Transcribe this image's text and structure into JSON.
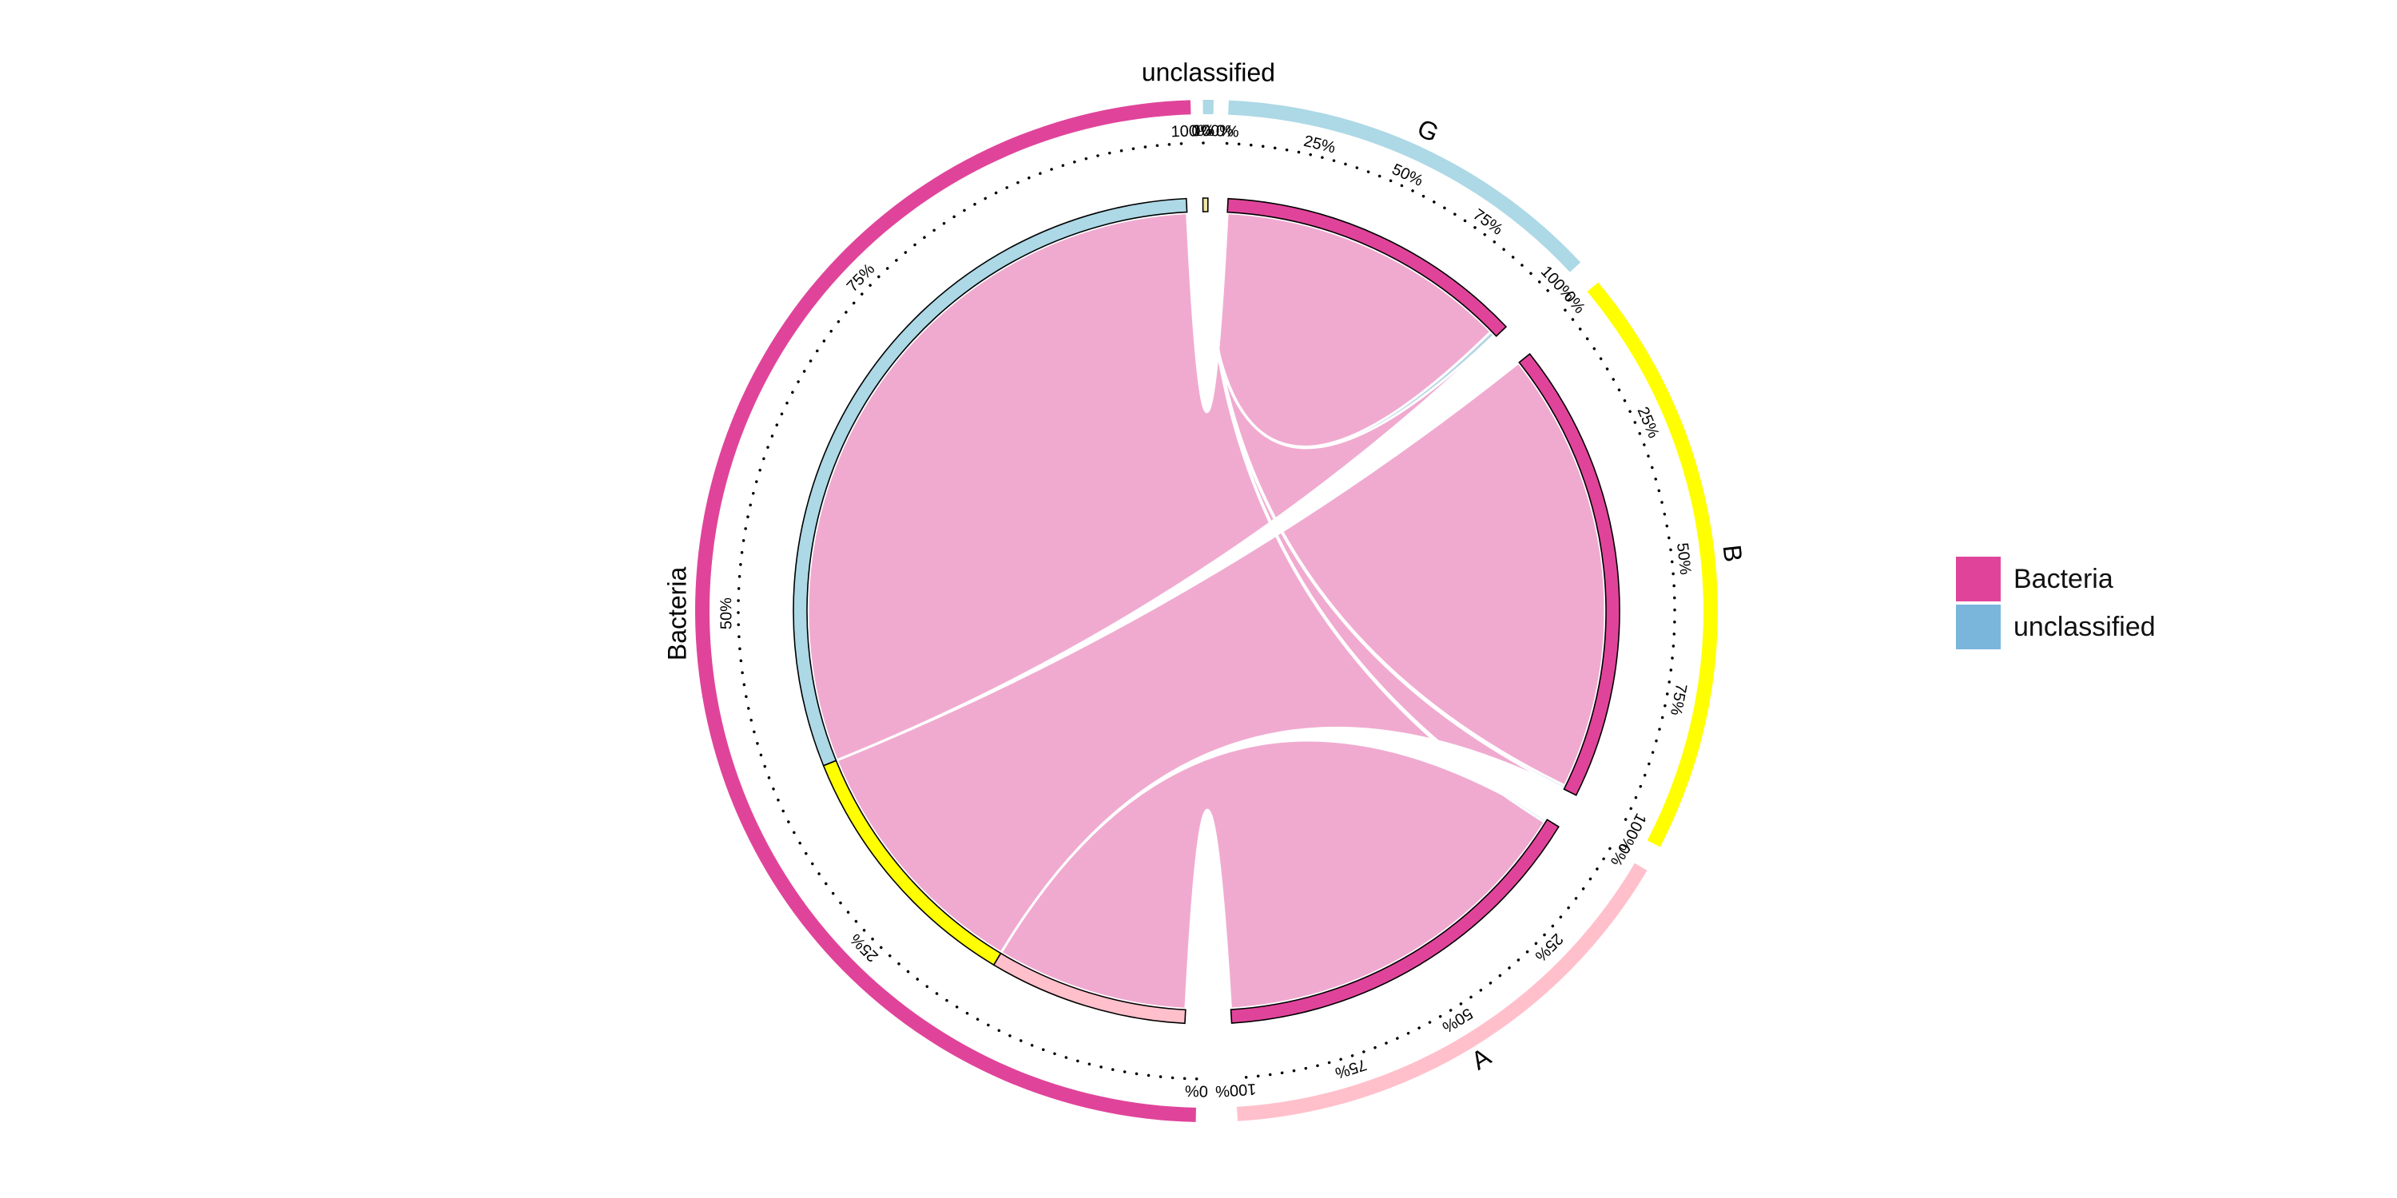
{
  "chart_data": {
    "type": "chord",
    "sectors": [
      {
        "name": "Bacteria",
        "color": "#E0449A",
        "percent_ticks": [
          "0%",
          "25%",
          "50%",
          "75%",
          "100%"
        ]
      },
      {
        "name": "unclassified",
        "color": "#ADD8E6",
        "percent_ticks": [
          "0%",
          "100%"
        ]
      },
      {
        "name": "G",
        "color": "#ADD8E6",
        "percent_ticks": [
          "0%",
          "25%",
          "50%",
          "75%",
          "100%"
        ]
      },
      {
        "name": "B",
        "color": "#FFFF00",
        "percent_ticks": [
          "0%",
          "25%",
          "50%",
          "75%",
          "100%"
        ]
      },
      {
        "name": "A",
        "color": "#FFC0CB",
        "percent_ticks": [
          "0%",
          "25%",
          "50%",
          "75%",
          "100%"
        ]
      }
    ],
    "links": [
      {
        "from": "Bacteria",
        "to": "G",
        "share_of_from": 0.315
      },
      {
        "from": "Bacteria",
        "to": "B",
        "share_of_from": 0.356
      },
      {
        "from": "Bacteria",
        "to": "A",
        "share_of_from": 0.329
      },
      {
        "from": "unclassified",
        "to": "G",
        "value_note": "tiny"
      },
      {
        "from": "unclassified",
        "to": "B",
        "value_note": "tiny"
      },
      {
        "from": "unclassified",
        "to": "A",
        "value_note": "tiny"
      }
    ],
    "link_colors": {
      "Bacteria": "#F0AAD0",
      "unclassified": "#ADD8E6"
    },
    "legend": {
      "position": "right",
      "items": [
        {
          "label": "Bacteria",
          "color": "#E0449A"
        },
        {
          "label": "unclassified",
          "color": "#7AB5DC"
        }
      ]
    }
  }
}
